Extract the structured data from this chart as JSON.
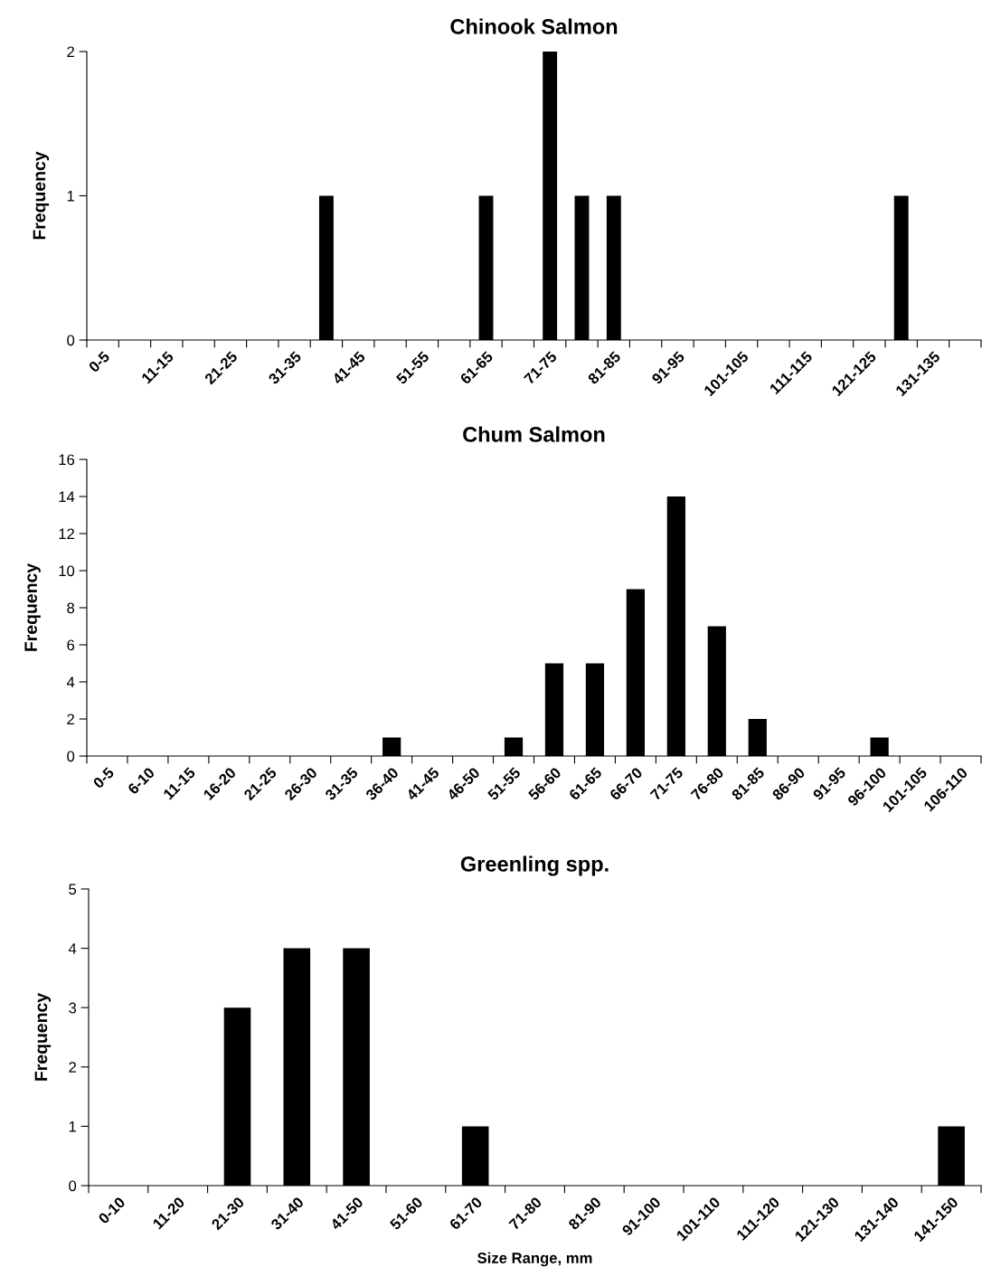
{
  "chart_data": [
    {
      "type": "bar",
      "title": "Chinook Salmon",
      "ylabel": "Frequency",
      "categories": [
        "0-5",
        null,
        "11-15",
        null,
        "21-25",
        null,
        "31-35",
        null,
        "41-45",
        null,
        "51-55",
        null,
        "61-65",
        null,
        "71-75",
        null,
        "81-85",
        null,
        "91-95",
        null,
        "101-105",
        null,
        "111-115",
        null,
        "121-125",
        null,
        "131-135",
        null
      ],
      "values": [
        0,
        0,
        0,
        0,
        0,
        0,
        0,
        1,
        0,
        0,
        0,
        0,
        1,
        0,
        2,
        1,
        1,
        0,
        0,
        0,
        0,
        0,
        0,
        0,
        0,
        1,
        0,
        0
      ],
      "color": "#000000",
      "ylim": [
        0,
        2
      ],
      "yticks": [
        0,
        1,
        2
      ],
      "grid": false,
      "legend": false
    },
    {
      "type": "bar",
      "title": "Chum Salmon",
      "ylabel": "Frequency",
      "categories": [
        "0-5",
        "6-10",
        "11-15",
        "16-20",
        "21-25",
        "26-30",
        "31-35",
        "36-40",
        "41-45",
        "46-50",
        "51-55",
        "56-60",
        "61-65",
        "66-70",
        "71-75",
        "76-80",
        "81-85",
        "86-90",
        "91-95",
        "96-100",
        "101-105",
        "106-110"
      ],
      "values": [
        0,
        0,
        0,
        0,
        0,
        0,
        0,
        1,
        0,
        0,
        1,
        5,
        5,
        9,
        14,
        7,
        2,
        0,
        0,
        1,
        0,
        0
      ],
      "color": "#000000",
      "ylim": [
        0,
        16
      ],
      "yticks": [
        0,
        2,
        4,
        6,
        8,
        10,
        12,
        14,
        16
      ],
      "grid": false,
      "legend": false
    },
    {
      "type": "bar",
      "title": "Greenling spp.",
      "ylabel": "Frequency",
      "xlabel": "Size Range, mm",
      "categories": [
        "0-10",
        "11-20",
        "21-30",
        "31-40",
        "41-50",
        "51-60",
        "61-70",
        "71-80",
        "81-90",
        "91-100",
        "101-110",
        "111-120",
        "121-130",
        "131-140",
        "141-150"
      ],
      "values": [
        0,
        0,
        3,
        4,
        4,
        0,
        1,
        0,
        0,
        0,
        0,
        0,
        0,
        0,
        1
      ],
      "color": "#000000",
      "ylim": [
        0,
        5
      ],
      "yticks": [
        0,
        1,
        2,
        3,
        4,
        5
      ],
      "grid": false,
      "legend": false
    }
  ]
}
